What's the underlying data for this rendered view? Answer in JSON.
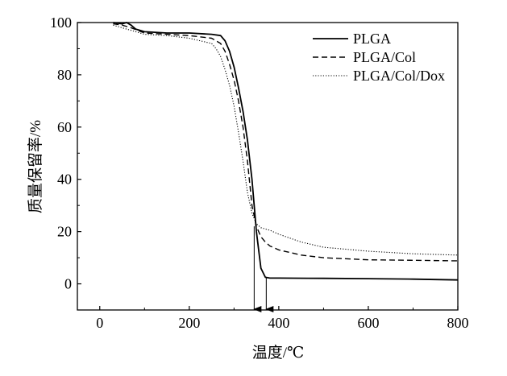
{
  "chart_data": {
    "type": "line",
    "xlabel": "温度/℃",
    "ylabel": "质量保留率/%",
    "xlim": [
      -50,
      800
    ],
    "ylim": [
      -10,
      100
    ],
    "xticks": [
      0,
      200,
      400,
      600,
      800
    ],
    "yticks": [
      0,
      20,
      40,
      60,
      80,
      100
    ],
    "grid": false,
    "legend_position": "top-right",
    "series": [
      {
        "name": "PLGA",
        "style": "solid",
        "color": "#000000",
        "x": [
          30,
          50,
          60,
          70,
          80,
          100,
          150,
          200,
          250,
          270,
          280,
          290,
          300,
          310,
          320,
          330,
          340,
          350,
          360,
          370,
          380,
          400,
          500,
          600,
          700,
          800
        ],
        "y": [
          100,
          99.5,
          100,
          99,
          97.5,
          96.5,
          96,
          96,
          95.5,
          95,
          93,
          89,
          83,
          75,
          66,
          55,
          40,
          20,
          6,
          2.5,
          2.2,
          2.2,
          2.1,
          2,
          1.8,
          1.5
        ]
      },
      {
        "name": "PLGA/Col",
        "style": "dashed",
        "color": "#000000",
        "x": [
          30,
          50,
          70,
          100,
          150,
          200,
          250,
          270,
          280,
          290,
          300,
          310,
          320,
          330,
          340,
          350,
          360,
          370,
          380,
          400,
          450,
          500,
          600,
          700,
          800
        ],
        "y": [
          99.5,
          99,
          98,
          96,
          95.5,
          95,
          94,
          92,
          89,
          84,
          78,
          70,
          60,
          47,
          30,
          22,
          18,
          16,
          14.5,
          13,
          11,
          10,
          9.2,
          9,
          8.8
        ]
      },
      {
        "name": "PLGA/Col/Dox",
        "style": "dotted",
        "color": "#000000",
        "x": [
          30,
          50,
          70,
          100,
          150,
          200,
          250,
          260,
          270,
          280,
          290,
          300,
          310,
          320,
          330,
          340,
          350,
          360,
          370,
          380,
          400,
          450,
          500,
          600,
          700,
          800
        ],
        "y": [
          99,
          98,
          97,
          95.5,
          95,
          94,
          92,
          90,
          87,
          82,
          76,
          68,
          58,
          47,
          35,
          27,
          23,
          21.5,
          21,
          20.5,
          19,
          16,
          14,
          12.5,
          11.5,
          11
        ]
      }
    ],
    "annotations": [
      {
        "type": "arrow",
        "x": 345,
        "from_y": 22,
        "to_y": -10
      },
      {
        "type": "arrow",
        "x": 372,
        "from_y": 2.5,
        "to_y": -10
      }
    ]
  }
}
